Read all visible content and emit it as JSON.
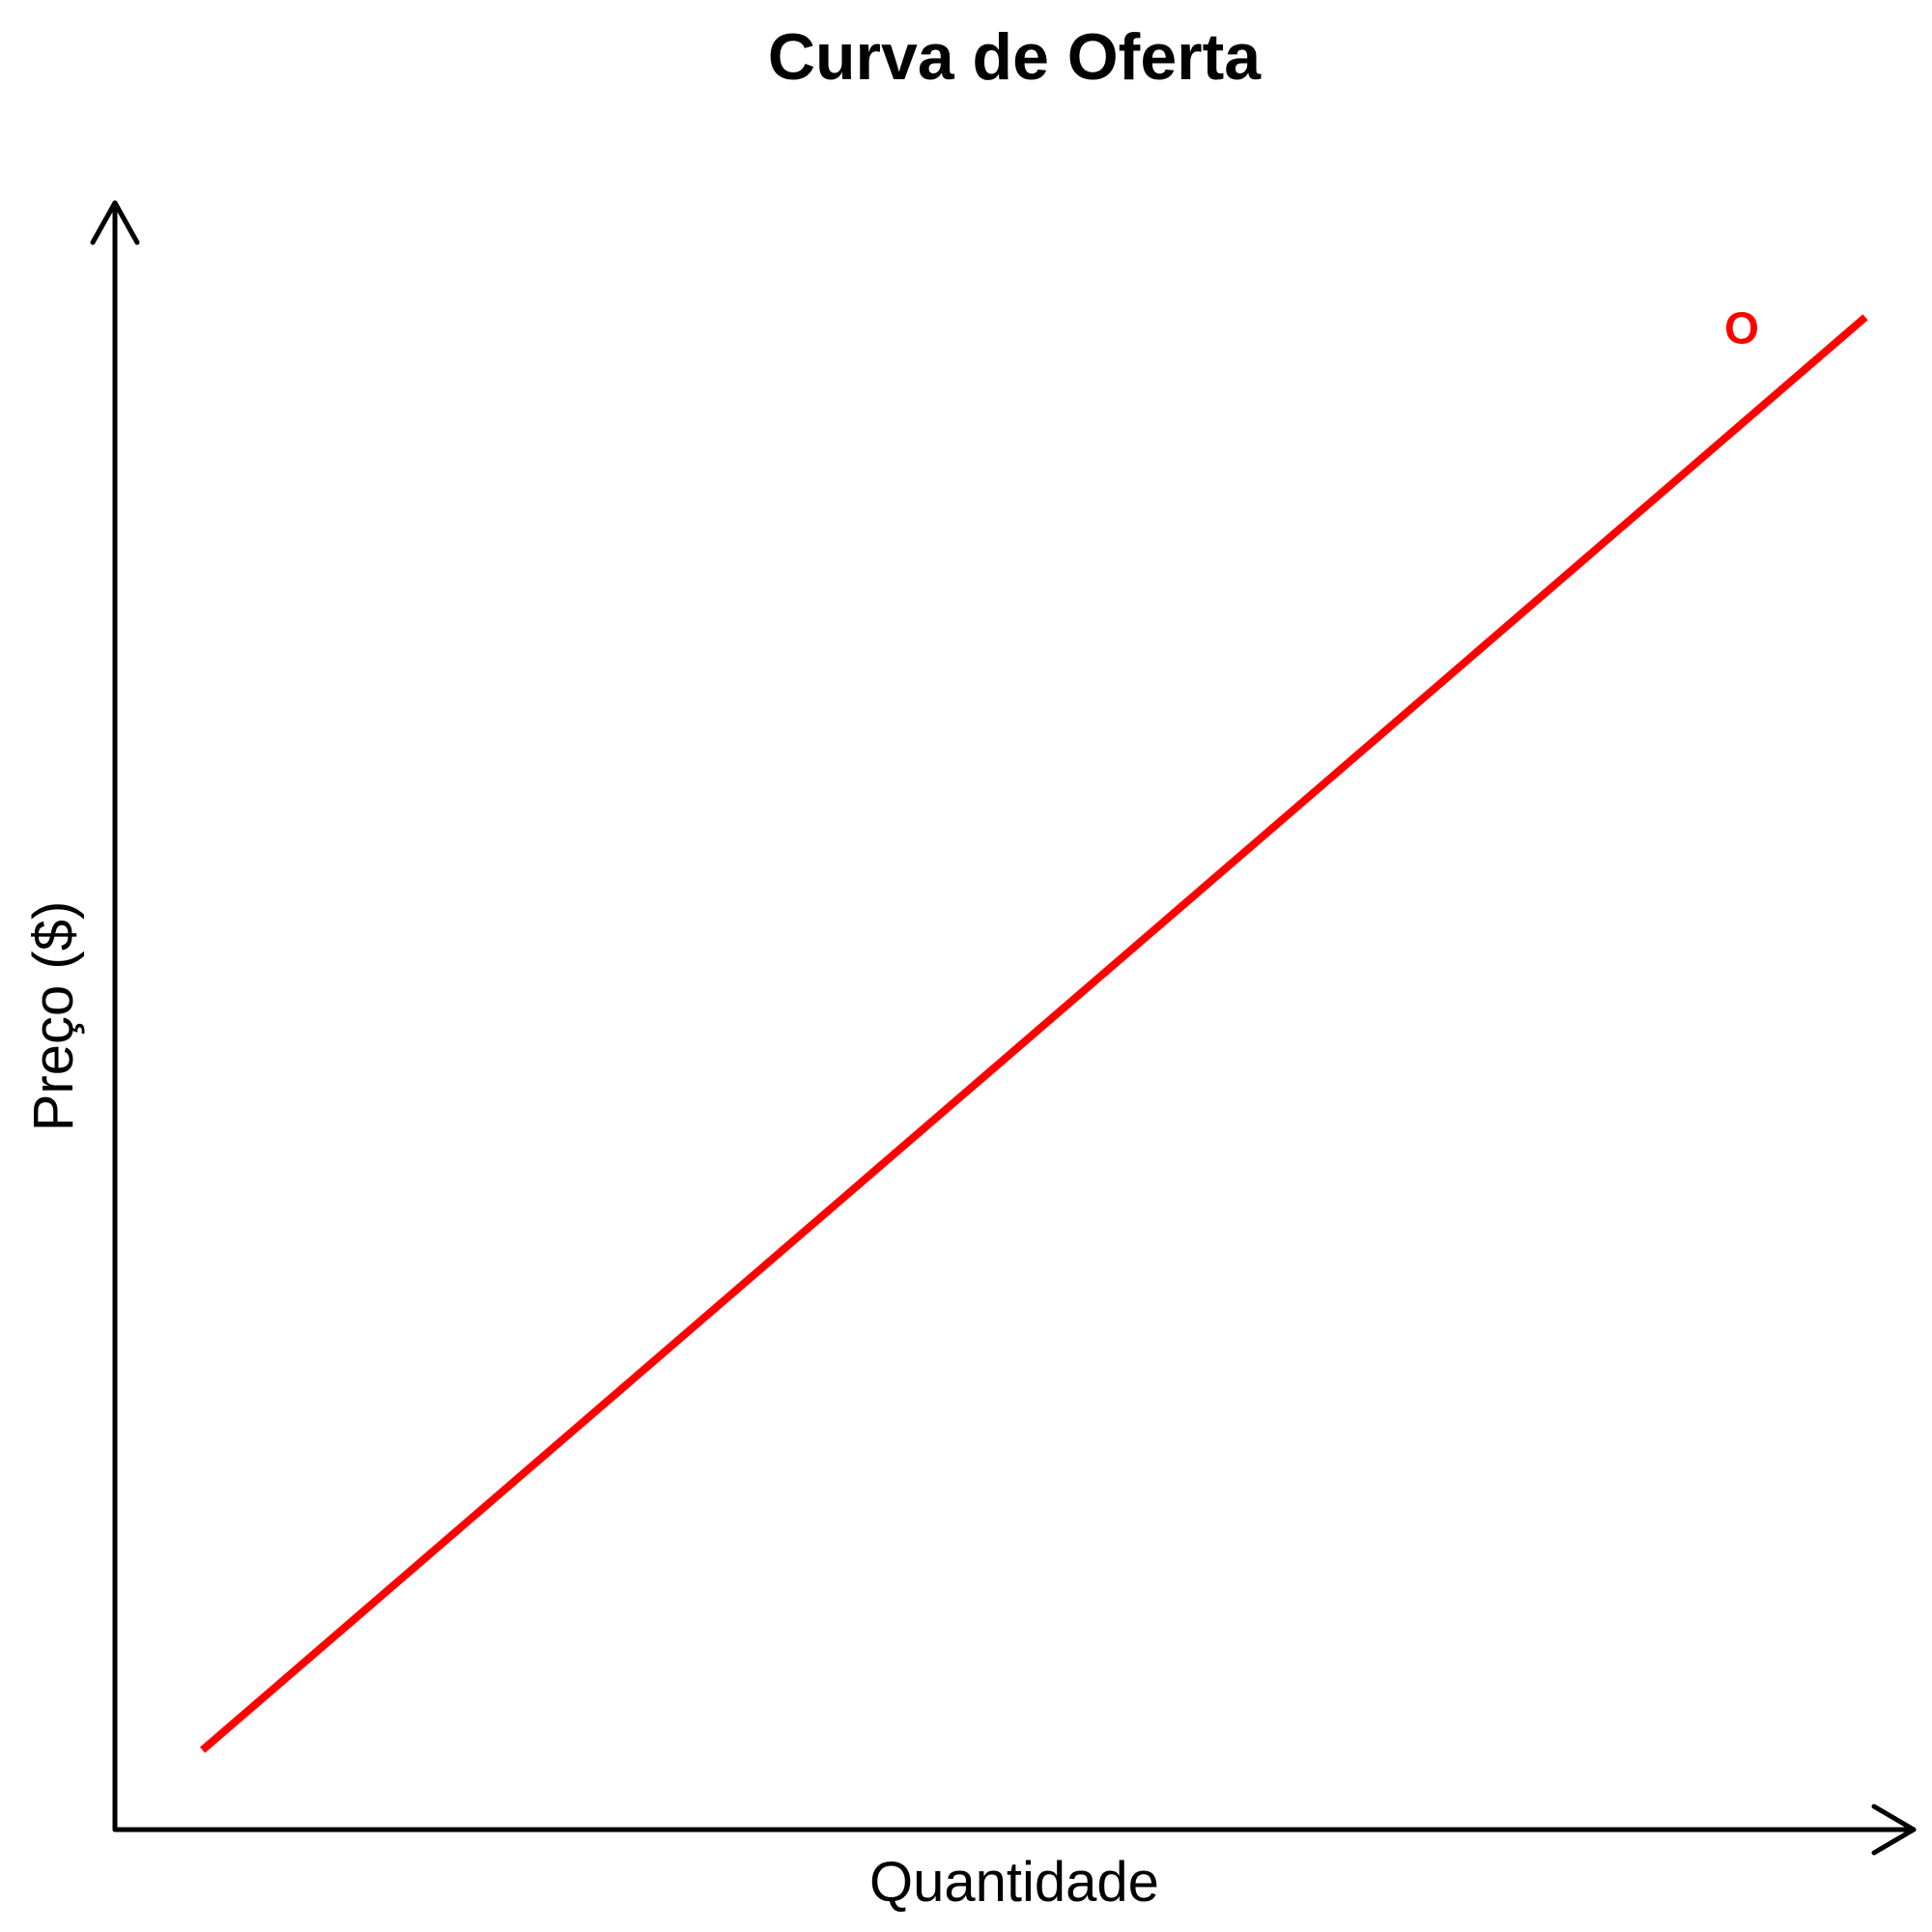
{
  "chart_data": {
    "type": "line",
    "title": "Curva de Oferta",
    "xlabel": "Quantidade",
    "ylabel": "Preço ($)",
    "xlim": [
      0,
      10
    ],
    "ylim": [
      0,
      10
    ],
    "grid": false,
    "ticks": false,
    "series": [
      {
        "name": "O",
        "color": "#ff0000",
        "x": [
          0.5,
          10
        ],
        "y": [
          0.5,
          9.5
        ]
      }
    ],
    "axis_color": "#000000",
    "axis_style": "arrows"
  }
}
